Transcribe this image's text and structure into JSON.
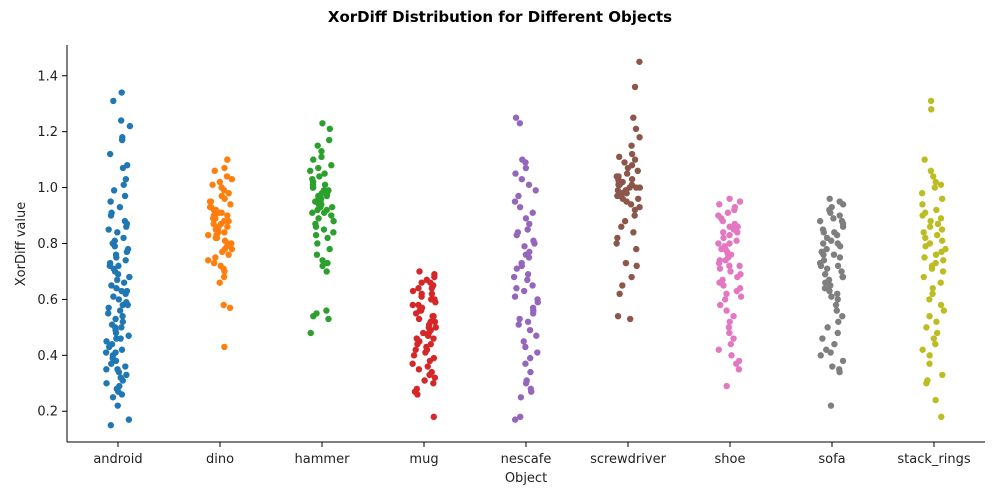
{
  "chart_data": {
    "type": "scatter",
    "subtype": "strip",
    "title": "XorDiff Distribution for Different Objects",
    "xlabel": "Object",
    "ylabel": "XorDiff value",
    "ylim": [
      0.09,
      1.51
    ],
    "yticks": [
      0.2,
      0.4,
      0.6,
      0.8,
      1.0,
      1.2,
      1.4
    ],
    "ytick_labels": [
      "0.2",
      "0.4",
      "0.6",
      "0.8",
      "1.0",
      "1.2",
      "1.4"
    ],
    "grid": false,
    "legend": "none",
    "categories": [
      "android",
      "dino",
      "hammer",
      "mug",
      "nescafe",
      "screwdriver",
      "shoe",
      "sofa",
      "stack_rings"
    ],
    "series": [
      {
        "category": "android",
        "color": "#1f77b4",
        "values": [
          1.34,
          1.31,
          1.24,
          1.22,
          1.18,
          1.17,
          1.12,
          1.08,
          1.07,
          1.03,
          1.01,
          0.99,
          0.97,
          0.95,
          0.93,
          0.91,
          0.9,
          0.88,
          0.87,
          0.86,
          0.85,
          0.84,
          0.82,
          0.81,
          0.8,
          0.79,
          0.78,
          0.77,
          0.76,
          0.75,
          0.74,
          0.73,
          0.72,
          0.71,
          0.7,
          0.69,
          0.68,
          0.67,
          0.66,
          0.65,
          0.64,
          0.63,
          0.62,
          0.61,
          0.6,
          0.59,
          0.58,
          0.57,
          0.56,
          0.55,
          0.54,
          0.53,
          0.52,
          0.51,
          0.5,
          0.49,
          0.48,
          0.47,
          0.46,
          0.45,
          0.44,
          0.43,
          0.42,
          0.41,
          0.4,
          0.39,
          0.38,
          0.37,
          0.36,
          0.35,
          0.34,
          0.33,
          0.32,
          0.31,
          0.3,
          0.29,
          0.28,
          0.27,
          0.26,
          0.25,
          0.22,
          0.17,
          0.15,
          0.72,
          0.58,
          0.46,
          0.35,
          0.5,
          0.63,
          0.41
        ]
      },
      {
        "category": "dino",
        "color": "#ff7f0e",
        "values": [
          1.1,
          1.07,
          1.06,
          1.04,
          1.03,
          1.02,
          1.01,
          1.0,
          0.99,
          0.98,
          0.97,
          0.96,
          0.95,
          0.94,
          0.93,
          0.92,
          0.91,
          0.9,
          0.89,
          0.88,
          0.87,
          0.86,
          0.85,
          0.84,
          0.83,
          0.82,
          0.81,
          0.8,
          0.79,
          0.78,
          0.77,
          0.76,
          0.75,
          0.74,
          0.73,
          0.72,
          0.71,
          0.7,
          0.68,
          0.66,
          0.58,
          0.57,
          0.43,
          0.93,
          0.91,
          0.89,
          0.88,
          0.86,
          0.85,
          0.84,
          0.83,
          0.82,
          0.9,
          0.92,
          0.95,
          0.87,
          0.8,
          0.78
        ]
      },
      {
        "category": "hammer",
        "color": "#2ca02c",
        "values": [
          1.23,
          1.21,
          1.17,
          1.15,
          1.13,
          1.11,
          1.1,
          1.08,
          1.07,
          1.06,
          1.05,
          1.04,
          1.03,
          1.02,
          1.01,
          1.0,
          0.99,
          0.98,
          0.97,
          0.96,
          0.95,
          0.94,
          0.93,
          0.92,
          0.91,
          0.9,
          0.89,
          0.88,
          0.87,
          0.86,
          0.85,
          0.84,
          0.83,
          0.82,
          0.8,
          0.78,
          0.76,
          0.74,
          0.73,
          0.72,
          0.7,
          0.56,
          0.55,
          0.54,
          0.53,
          0.48,
          1.0,
          0.98,
          0.96,
          0.94,
          0.92,
          1.01,
          0.99,
          0.97,
          0.95,
          0.93,
          0.91
        ]
      },
      {
        "category": "mug",
        "color": "#d62728",
        "values": [
          0.7,
          0.69,
          0.68,
          0.67,
          0.66,
          0.65,
          0.64,
          0.63,
          0.62,
          0.61,
          0.6,
          0.59,
          0.58,
          0.57,
          0.56,
          0.55,
          0.54,
          0.53,
          0.52,
          0.51,
          0.5,
          0.49,
          0.48,
          0.47,
          0.46,
          0.45,
          0.44,
          0.43,
          0.42,
          0.41,
          0.4,
          0.39,
          0.38,
          0.37,
          0.36,
          0.35,
          0.34,
          0.33,
          0.32,
          0.31,
          0.3,
          0.28,
          0.27,
          0.26,
          0.18,
          0.6,
          0.58,
          0.56,
          0.54,
          0.52,
          0.5,
          0.48,
          0.46,
          0.62,
          0.64,
          0.66,
          0.44,
          0.42
        ]
      },
      {
        "category": "nescafe",
        "color": "#9467bd",
        "values": [
          1.25,
          1.23,
          1.1,
          1.09,
          1.07,
          1.05,
          1.03,
          1.01,
          0.99,
          0.97,
          0.95,
          0.93,
          0.91,
          0.89,
          0.87,
          0.85,
          0.83,
          0.81,
          0.79,
          0.77,
          0.75,
          0.73,
          0.71,
          0.69,
          0.67,
          0.65,
          0.63,
          0.61,
          0.59,
          0.57,
          0.55,
          0.53,
          0.51,
          0.49,
          0.47,
          0.45,
          0.43,
          0.41,
          0.39,
          0.37,
          0.34,
          0.31,
          0.3,
          0.28,
          0.27,
          0.25,
          0.18,
          0.17,
          0.84,
          0.8,
          0.76,
          0.72,
          0.68,
          0.64,
          0.6,
          0.56,
          0.52
        ]
      },
      {
        "category": "screwdriver",
        "color": "#8c564b",
        "values": [
          1.45,
          1.36,
          1.25,
          1.21,
          1.18,
          1.15,
          1.12,
          1.11,
          1.1,
          1.09,
          1.08,
          1.07,
          1.06,
          1.05,
          1.04,
          1.03,
          1.02,
          1.01,
          1.0,
          0.99,
          0.98,
          0.97,
          0.96,
          0.95,
          0.94,
          0.93,
          0.92,
          0.9,
          0.88,
          0.86,
          0.84,
          0.82,
          0.8,
          0.78,
          0.73,
          0.72,
          0.68,
          0.65,
          0.62,
          0.54,
          0.53,
          1.0,
          1.01,
          0.99,
          1.02,
          0.98,
          1.03,
          0.97,
          1.04,
          0.96,
          1.0,
          1.01
        ]
      },
      {
        "category": "shoe",
        "color": "#e377c2",
        "values": [
          0.96,
          0.95,
          0.94,
          0.93,
          0.92,
          0.91,
          0.9,
          0.89,
          0.88,
          0.87,
          0.86,
          0.85,
          0.84,
          0.83,
          0.82,
          0.81,
          0.8,
          0.79,
          0.78,
          0.77,
          0.76,
          0.75,
          0.74,
          0.73,
          0.72,
          0.71,
          0.7,
          0.69,
          0.68,
          0.67,
          0.66,
          0.65,
          0.64,
          0.63,
          0.62,
          0.61,
          0.6,
          0.58,
          0.56,
          0.54,
          0.52,
          0.5,
          0.48,
          0.46,
          0.44,
          0.42,
          0.4,
          0.38,
          0.37,
          0.35,
          0.29,
          0.8,
          0.78,
          0.76,
          0.74,
          0.72,
          0.84,
          0.86
        ]
      },
      {
        "category": "sofa",
        "color": "#7f7f7f",
        "values": [
          0.96,
          0.95,
          0.94,
          0.93,
          0.92,
          0.91,
          0.9,
          0.89,
          0.88,
          0.87,
          0.86,
          0.85,
          0.84,
          0.83,
          0.82,
          0.81,
          0.8,
          0.79,
          0.78,
          0.77,
          0.76,
          0.75,
          0.74,
          0.73,
          0.72,
          0.71,
          0.7,
          0.69,
          0.68,
          0.67,
          0.66,
          0.65,
          0.64,
          0.63,
          0.62,
          0.61,
          0.6,
          0.58,
          0.56,
          0.54,
          0.52,
          0.5,
          0.48,
          0.46,
          0.44,
          0.42,
          0.41,
          0.4,
          0.38,
          0.36,
          0.35,
          0.34,
          0.22,
          0.8,
          0.76,
          0.72,
          0.68,
          0.84,
          0.88
        ]
      },
      {
        "category": "stack_rings",
        "color": "#bcbd22",
        "values": [
          1.31,
          1.28,
          1.1,
          1.06,
          1.04,
          1.02,
          1.01,
          1.0,
          0.98,
          0.96,
          0.94,
          0.92,
          0.9,
          0.88,
          0.86,
          0.84,
          0.82,
          0.8,
          0.78,
          0.76,
          0.74,
          0.72,
          0.7,
          0.68,
          0.66,
          0.64,
          0.62,
          0.6,
          0.58,
          0.56,
          0.54,
          0.52,
          0.5,
          0.48,
          0.46,
          0.44,
          0.42,
          0.4,
          0.37,
          0.33,
          0.31,
          0.3,
          0.24,
          0.18,
          0.85,
          0.83,
          0.81,
          0.79,
          0.77,
          0.75,
          0.87,
          0.89,
          0.91,
          0.73,
          0.71
        ]
      }
    ]
  }
}
